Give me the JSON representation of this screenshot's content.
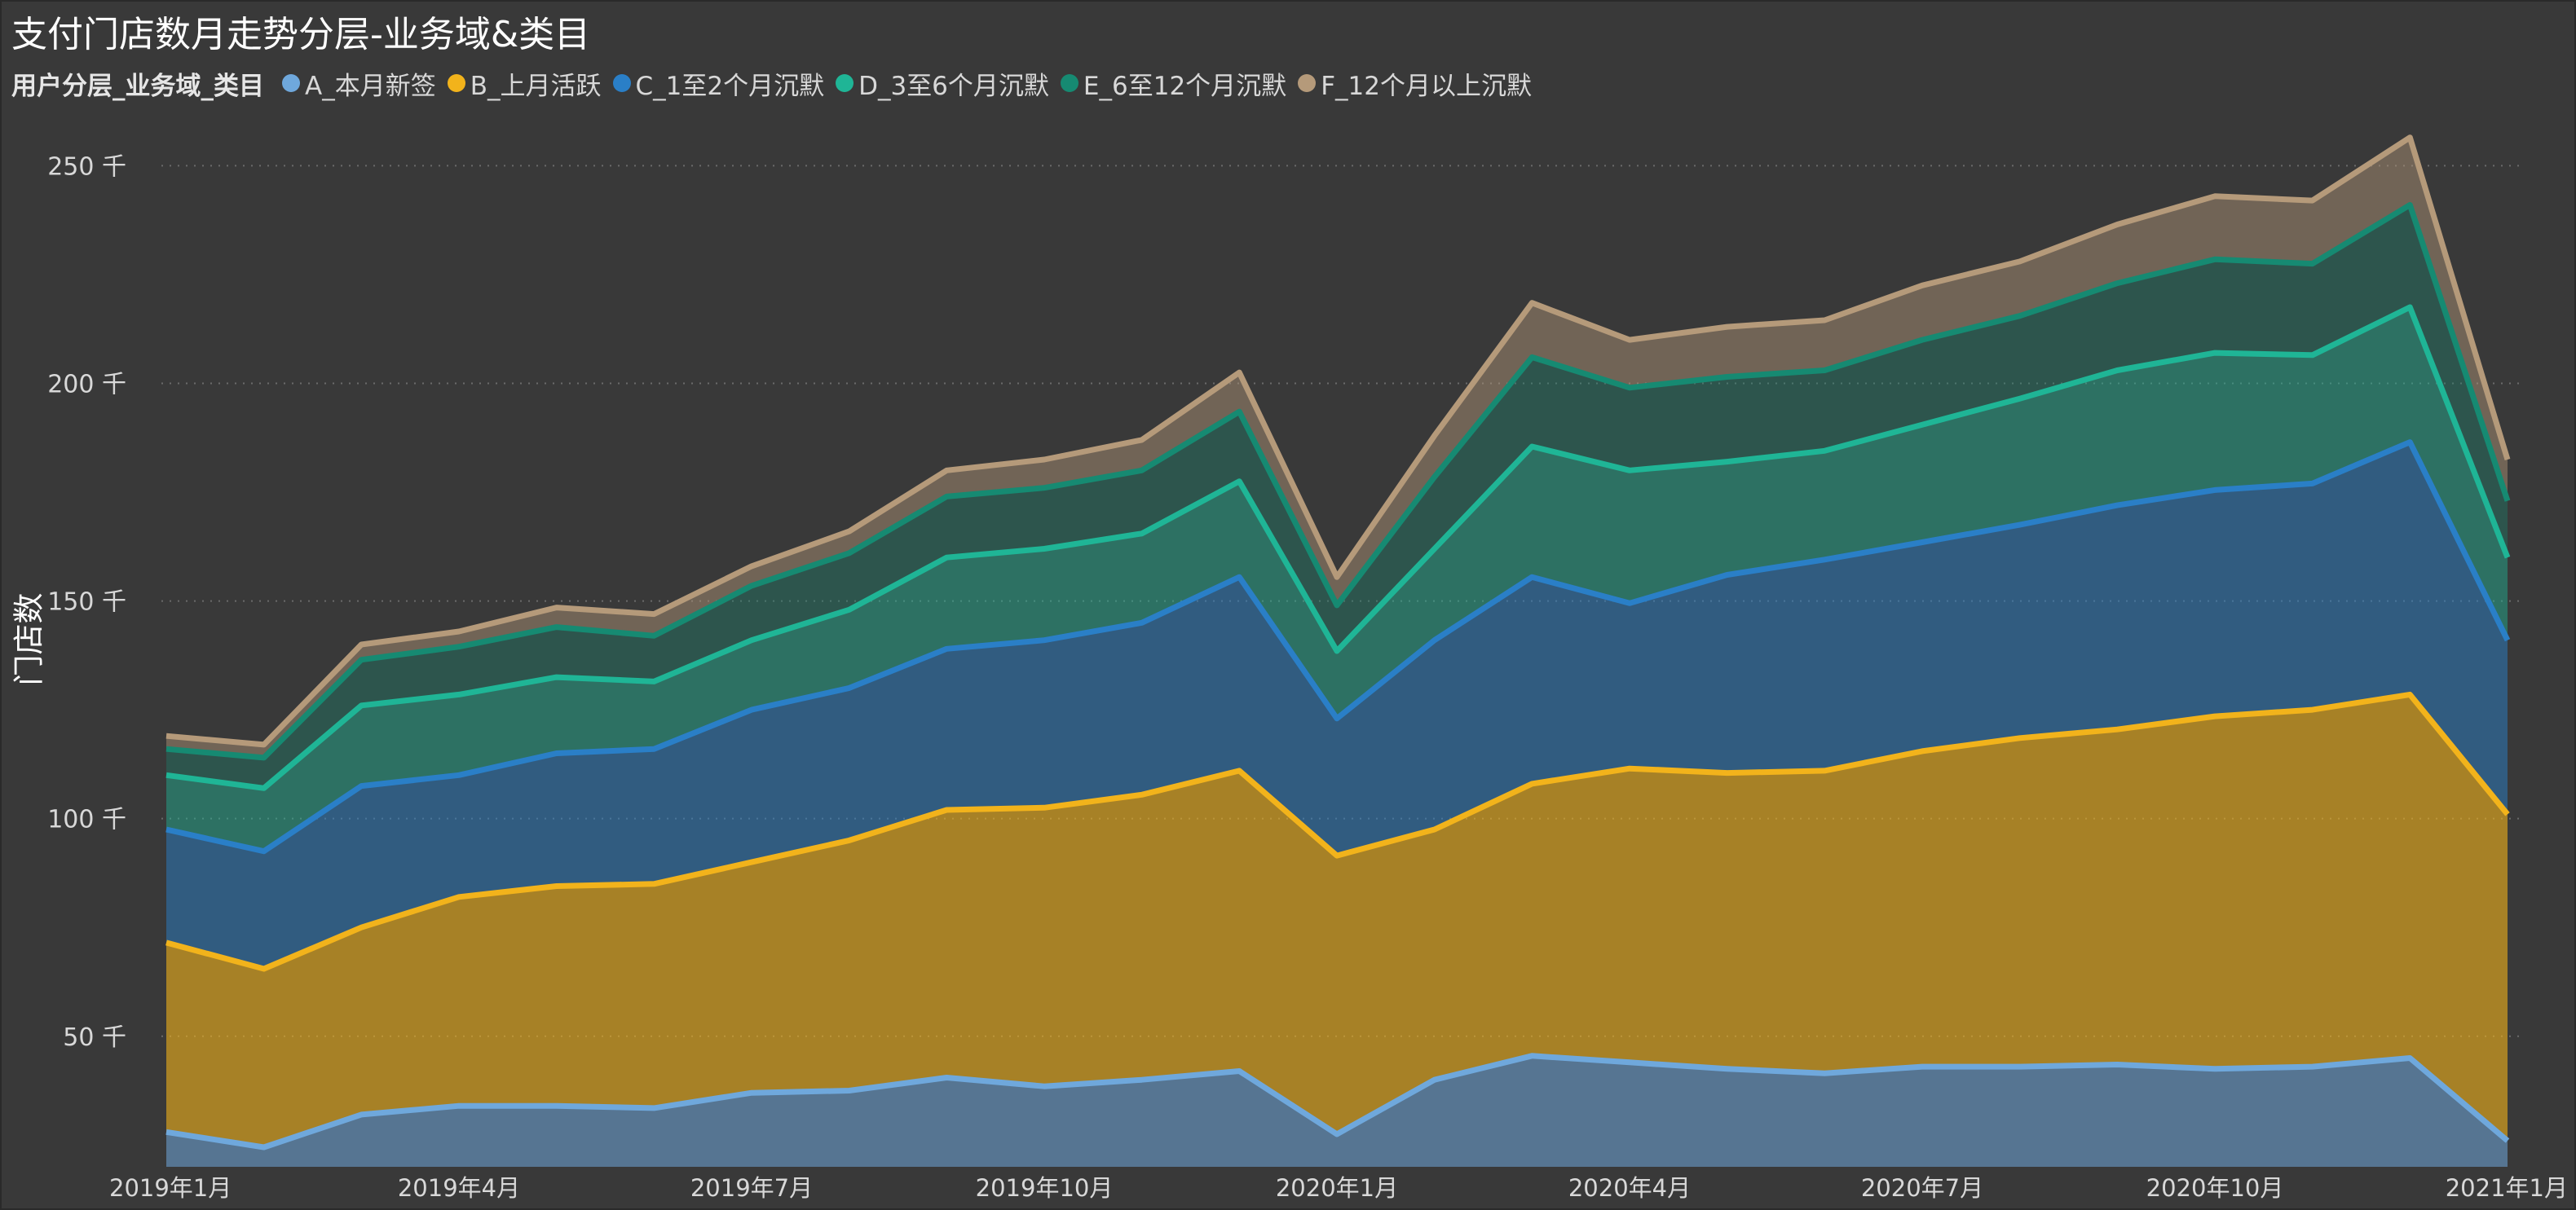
{
  "chart_data": {
    "type": "area",
    "stacked": true,
    "title": "支付门店数月走势分层-业务域&类目",
    "ylabel": "门店数",
    "xlabel": "",
    "legend_title": "用户分层_业务域_类目",
    "legend_position": "top-left",
    "grid": "horizontal-dotted",
    "ylim": [
      20000,
      260000
    ],
    "y_ticks": [
      {
        "value": 50000,
        "label": "50 千"
      },
      {
        "value": 100000,
        "label": "100 千"
      },
      {
        "value": 150000,
        "label": "150 千"
      },
      {
        "value": 200000,
        "label": "200 千"
      },
      {
        "value": 250000,
        "label": "250 千"
      }
    ],
    "x": [
      "2019-01",
      "2019-02",
      "2019-03",
      "2019-04",
      "2019-05",
      "2019-06",
      "2019-07",
      "2019-08",
      "2019-09",
      "2019-10",
      "2019-11",
      "2019-12",
      "2020-01",
      "2020-02",
      "2020-03",
      "2020-04",
      "2020-05",
      "2020-06",
      "2020-07",
      "2020-08",
      "2020-09",
      "2020-10",
      "2020-11",
      "2020-12",
      "2021-01"
    ],
    "x_ticks": [
      {
        "index": 0,
        "label": "2019年1月"
      },
      {
        "index": 3,
        "label": "2019年4月"
      },
      {
        "index": 6,
        "label": "2019年7月"
      },
      {
        "index": 9,
        "label": "2019年10月"
      },
      {
        "index": 12,
        "label": "2020年1月"
      },
      {
        "index": 15,
        "label": "2020年4月"
      },
      {
        "index": 18,
        "label": "2020年7月"
      },
      {
        "index": 21,
        "label": "2020年10月"
      },
      {
        "index": 24,
        "label": "2021年1月"
      }
    ],
    "series": [
      {
        "name": "A_本月新签",
        "color": "#6fa8dc",
        "values": [
          28000,
          24500,
          32000,
          34000,
          34000,
          33500,
          37000,
          37500,
          40500,
          38500,
          40000,
          42000,
          27500,
          40000,
          45500,
          44000,
          42500,
          41500,
          43000,
          43000,
          43500,
          42500,
          43000,
          45000,
          26000
        ]
      },
      {
        "name": "B_上月活跃",
        "color": "#f2b31b",
        "values": [
          43500,
          41000,
          43000,
          48000,
          50500,
          51500,
          53000,
          57500,
          61500,
          64000,
          65500,
          69000,
          64000,
          57500,
          62500,
          67500,
          68000,
          69500,
          72500,
          75500,
          77000,
          81000,
          82000,
          83500,
          75000
        ]
      },
      {
        "name": "C_1至2个月沉默",
        "color": "#2a7fc7",
        "values": [
          26000,
          27000,
          32500,
          28000,
          30500,
          31000,
          35000,
          35000,
          37000,
          38500,
          39500,
          44500,
          31500,
          43500,
          47500,
          38000,
          45500,
          48500,
          48000,
          49000,
          51500,
          52000,
          52000,
          58000,
          40000
        ]
      },
      {
        "name": "D_3至6个月沉默",
        "color": "#1fb596",
        "values": [
          12500,
          14500,
          18500,
          18500,
          17500,
          15500,
          16000,
          18000,
          21000,
          21000,
          20500,
          22000,
          15500,
          21000,
          30000,
          30500,
          26000,
          25000,
          27000,
          29000,
          31000,
          31500,
          29500,
          31000,
          19000
        ]
      },
      {
        "name": "E_6至12个月沉默",
        "color": "#168a72",
        "values": [
          6000,
          7000,
          10500,
          11000,
          11500,
          10500,
          12500,
          13000,
          14000,
          14000,
          14500,
          16000,
          10500,
          16500,
          20500,
          19000,
          19500,
          18500,
          19500,
          19000,
          20000,
          21500,
          21000,
          23500,
          13000
        ]
      },
      {
        "name": "F_12个月以上沉默",
        "color": "#b59a7a",
        "values": [
          3000,
          3000,
          3500,
          3500,
          4500,
          5000,
          4500,
          5000,
          6000,
          6500,
          7000,
          9000,
          6500,
          9500,
          12500,
          11000,
          11500,
          11500,
          12500,
          12500,
          13500,
          14500,
          14500,
          15500,
          9500
        ]
      }
    ]
  }
}
